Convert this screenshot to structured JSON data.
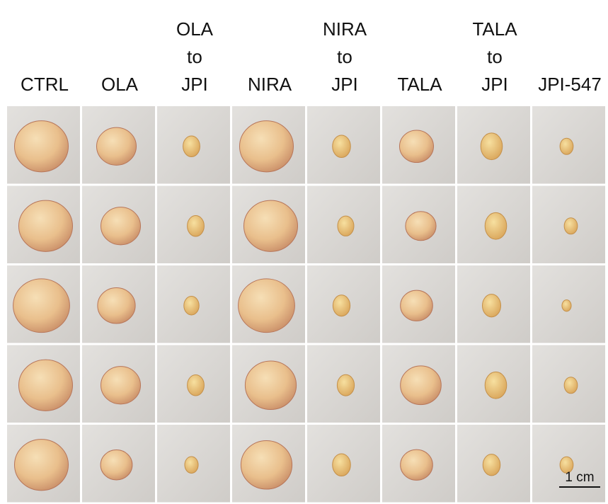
{
  "columns": [
    {
      "lines": [
        "CTRL"
      ]
    },
    {
      "lines": [
        "OLA"
      ]
    },
    {
      "lines": [
        "OLA",
        "to",
        "JPI"
      ]
    },
    {
      "lines": [
        "NIRA"
      ]
    },
    {
      "lines": [
        "NIRA",
        "to",
        "JPI"
      ]
    },
    {
      "lines": [
        "TALA"
      ]
    },
    {
      "lines": [
        "TALA",
        "to",
        "JPI"
      ]
    },
    {
      "lines": [
        "JPI-547"
      ]
    }
  ],
  "scale_bar": {
    "label": "1 cm"
  }
}
